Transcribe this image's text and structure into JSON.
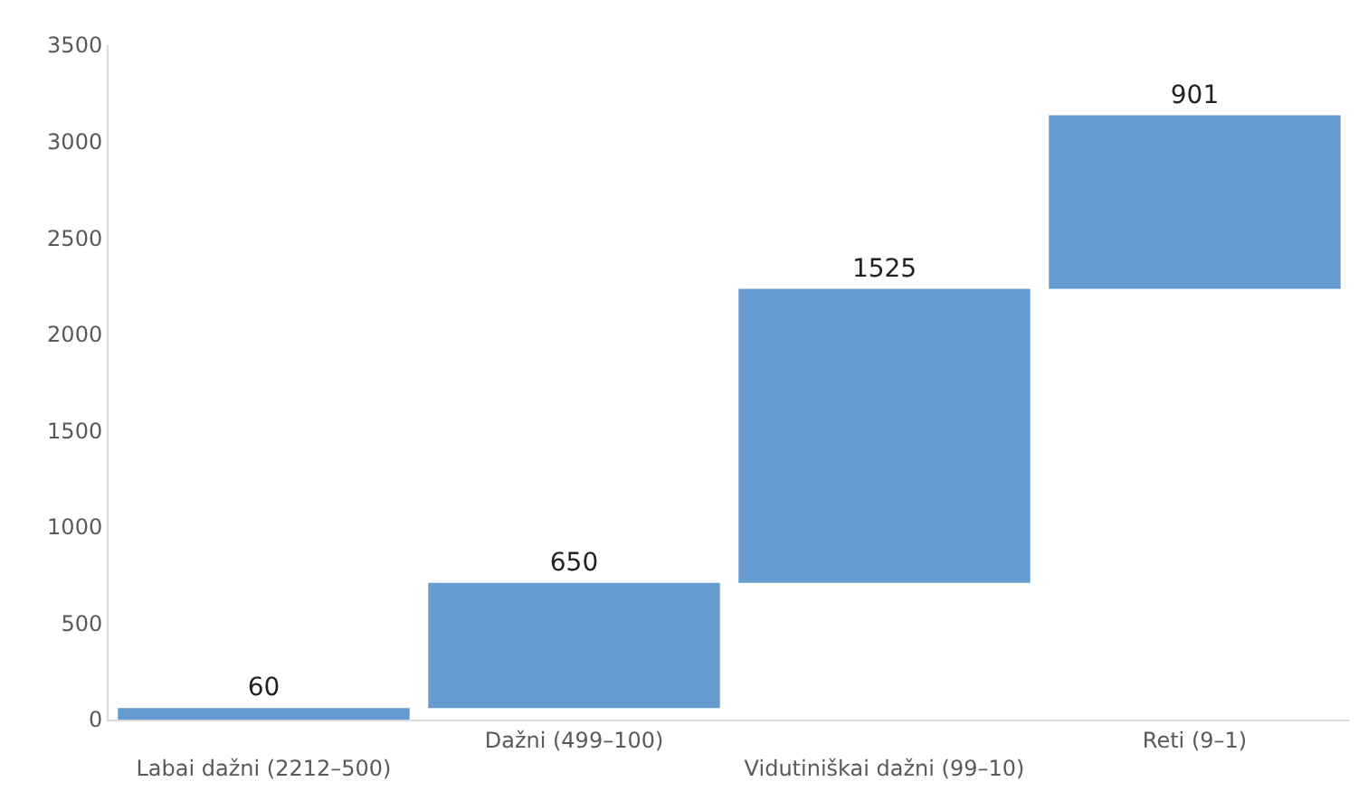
{
  "chart_data": {
    "type": "bar",
    "categories": [
      "Labai dažni (2212–500)",
      "Dažni (499–100)",
      "Vidutiniškai dažni (99–10)",
      "Reti (9–1)"
    ],
    "values": [
      60,
      650,
      1525,
      901
    ],
    "base": [
      0,
      60,
      710,
      2235
    ],
    "color": "#659bd0",
    "data_labels": true,
    "ylim": [
      0,
      3500
    ],
    "yticks": [
      0,
      500,
      1000,
      1500,
      2000,
      2500,
      3000,
      3500
    ]
  }
}
